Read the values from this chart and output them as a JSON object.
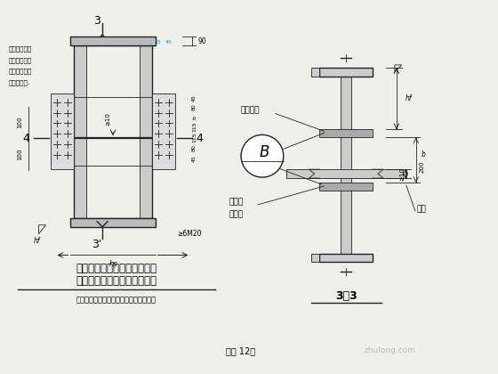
{
  "bg_color": "#f0f0eb",
  "line_color": "#222222",
  "title_line1": "箱形截面柱的工地拼接及设置",
  "title_line2": "安装耳板和水平加劲肋的构造",
  "subtitle": "（箱壁采用全熔透的坡口对接焊缝连接）",
  "fig_label": "（图 12）",
  "note_lines": [
    "在此范围内，",
    "夹装圆的铆塞",
    "焊缝应采用全",
    "熔透坡口焊."
  ]
}
